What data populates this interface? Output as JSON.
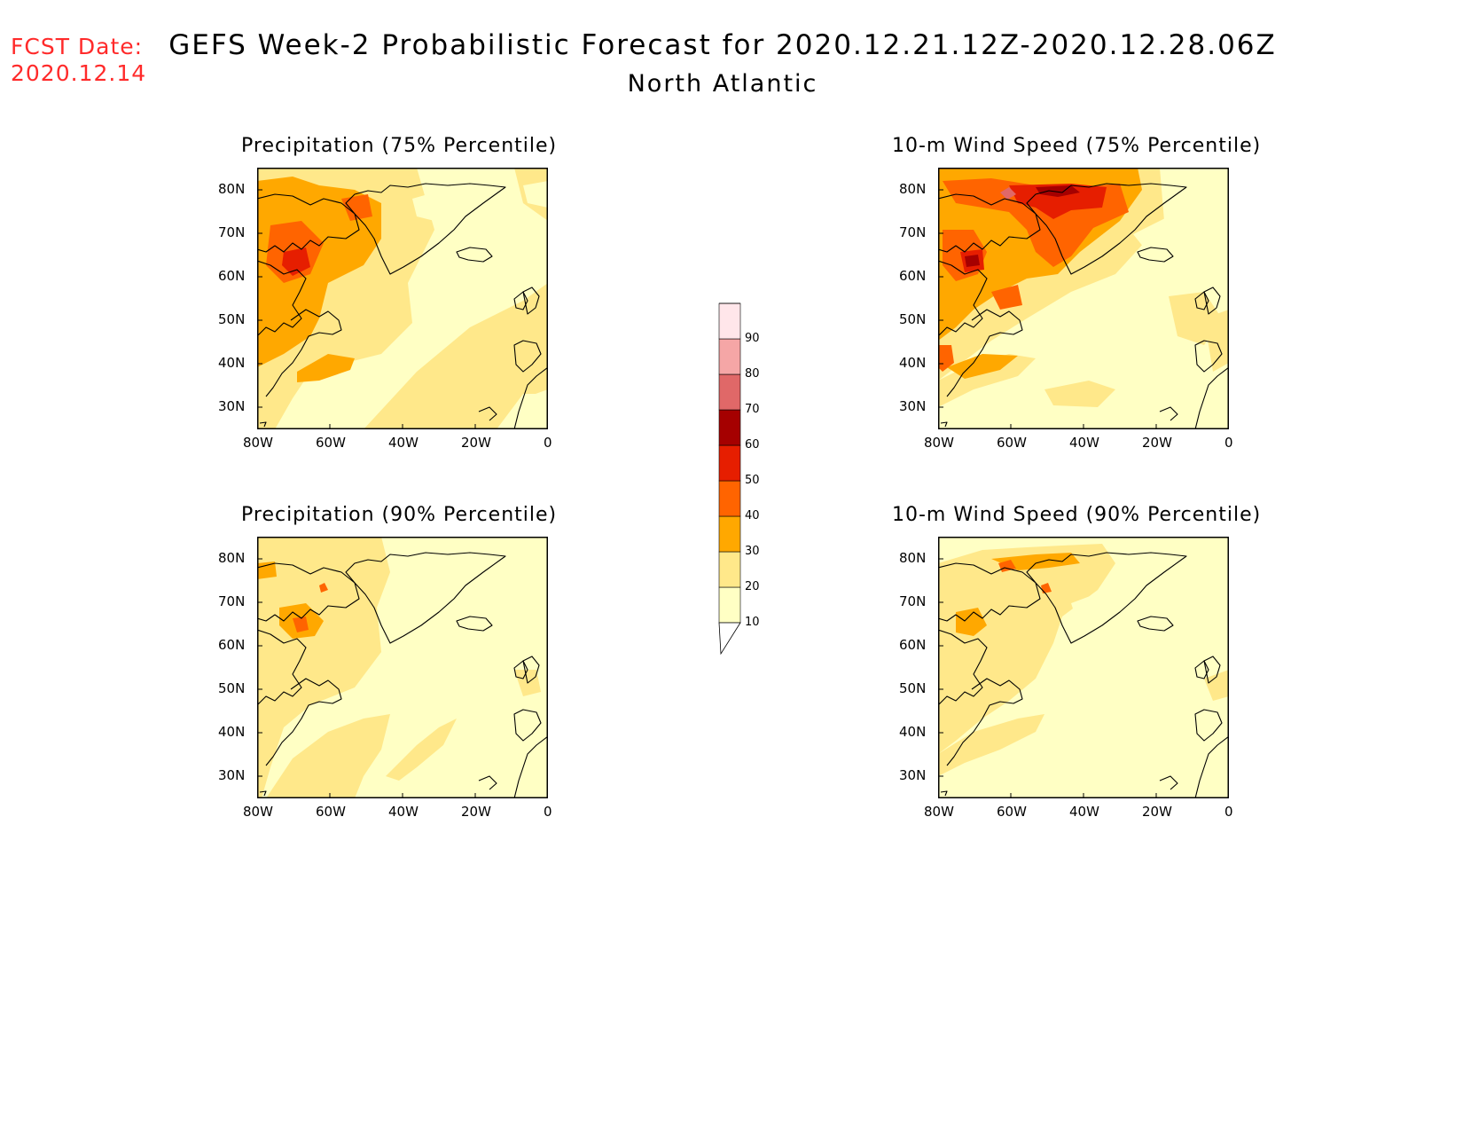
{
  "fcst": {
    "line1": "FCST Date:",
    "line2": "2020.12.14"
  },
  "title": "GEFS Week-2 Probabilistic Forecast for 2020.12.21.12Z-2020.12.28.06Z",
  "subtitle": "North Atlantic",
  "lat_ticks": [
    "80N",
    "70N",
    "60N",
    "50N",
    "40N",
    "30N"
  ],
  "lon_ticks": [
    "80W",
    "60W",
    "40W",
    "20W",
    "0"
  ],
  "colorbar": {
    "levels": [
      "10",
      "20",
      "30",
      "40",
      "50",
      "60",
      "70",
      "80",
      "90"
    ],
    "colors": [
      "#ffffc4",
      "#ffe88a",
      "#ffa800",
      "#ff6400",
      "#e61e00",
      "#a50000",
      "#e06868",
      "#f5a6a6",
      "#ffe6ea"
    ]
  },
  "panels": [
    {
      "id": "precip75",
      "title": "Precipitation (75% Percentile)"
    },
    {
      "id": "wind75",
      "title": "10-m Wind Speed (75% Percentile)"
    },
    {
      "id": "precip90",
      "title": "Precipitation (90% Percentile)"
    },
    {
      "id": "wind90",
      "title": "10-m Wind Speed (90% Percentile)"
    }
  ]
}
